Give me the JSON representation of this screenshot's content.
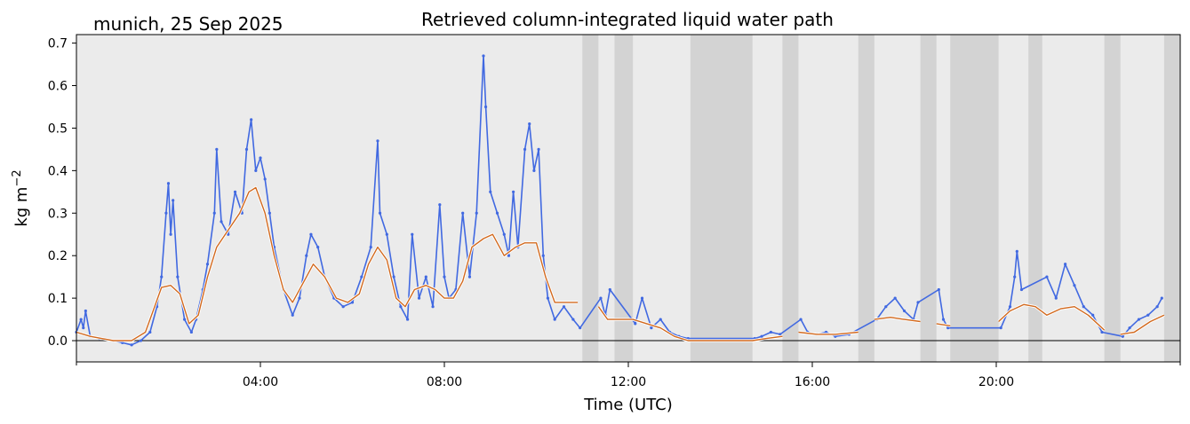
{
  "chart_data": {
    "type": "scatter",
    "title": "Retrieved column-integrated liquid water path",
    "location_label": "munich, 25 Sep 2025",
    "xlabel": "Time (UTC)",
    "ylabel": "kg m",
    "ylabel_exponent": "−2",
    "x_unit": "hour_utc",
    "xlim": [
      0,
      24
    ],
    "ylim": [
      -0.05,
      0.72
    ],
    "x_ticks": [
      {
        "x": 4,
        "label": "04:00"
      },
      {
        "x": 8,
        "label": "08:00"
      },
      {
        "x": 12,
        "label": "12:00"
      },
      {
        "x": 16,
        "label": "16:00"
      },
      {
        "x": 20,
        "label": "20:00"
      }
    ],
    "x_minor_ticks": [
      0,
      24
    ],
    "y_ticks": [
      {
        "y": 0.0,
        "label": "0.0"
      },
      {
        "y": 0.1,
        "label": "0.1"
      },
      {
        "y": 0.2,
        "label": "0.2"
      },
      {
        "y": 0.3,
        "label": "0.3"
      },
      {
        "y": 0.4,
        "label": "0.4"
      },
      {
        "y": 0.5,
        "label": "0.5"
      },
      {
        "y": 0.6,
        "label": "0.6"
      },
      {
        "y": 0.7,
        "label": "0.7"
      }
    ],
    "zero_line": 0.0,
    "background_color": "#ebebeb",
    "flag_band_color": "#d3d3d3",
    "flagged_intervals": [
      [
        11.0,
        11.35
      ],
      [
        11.7,
        12.1
      ],
      [
        13.35,
        14.7
      ],
      [
        15.35,
        15.7
      ],
      [
        17.0,
        17.35
      ],
      [
        18.35,
        18.7
      ],
      [
        19.0,
        20.05
      ],
      [
        20.7,
        21.0
      ],
      [
        22.35,
        22.7
      ],
      [
        23.65,
        24.0
      ]
    ],
    "series": [
      {
        "kind": "raw_scatter",
        "color": "#4169e1",
        "points": [
          [
            0.0,
            0.02
          ],
          [
            0.1,
            0.05
          ],
          [
            0.15,
            0.03
          ],
          [
            0.2,
            0.07
          ],
          [
            0.3,
            0.01
          ],
          [
            0.5,
            0.005
          ],
          [
            0.8,
            0.0
          ],
          [
            1.0,
            -0.005
          ],
          [
            1.2,
            -0.01
          ],
          [
            1.4,
            0.0
          ],
          [
            1.6,
            0.02
          ],
          [
            1.75,
            0.08
          ],
          [
            1.85,
            0.15
          ],
          [
            1.95,
            0.3
          ],
          [
            2.0,
            0.37
          ],
          [
            2.05,
            0.25
          ],
          [
            2.1,
            0.33
          ],
          [
            2.2,
            0.15
          ],
          [
            2.35,
            0.05
          ],
          [
            2.5,
            0.02
          ],
          [
            2.6,
            0.05
          ],
          [
            2.75,
            0.12
          ],
          [
            2.85,
            0.18
          ],
          [
            3.0,
            0.3
          ],
          [
            3.05,
            0.45
          ],
          [
            3.15,
            0.28
          ],
          [
            3.3,
            0.25
          ],
          [
            3.45,
            0.35
          ],
          [
            3.6,
            0.3
          ],
          [
            3.7,
            0.45
          ],
          [
            3.8,
            0.52
          ],
          [
            3.9,
            0.4
          ],
          [
            4.0,
            0.43
          ],
          [
            4.1,
            0.38
          ],
          [
            4.2,
            0.3
          ],
          [
            4.3,
            0.22
          ],
          [
            4.5,
            0.12
          ],
          [
            4.7,
            0.06
          ],
          [
            4.85,
            0.1
          ],
          [
            5.0,
            0.2
          ],
          [
            5.1,
            0.25
          ],
          [
            5.25,
            0.22
          ],
          [
            5.4,
            0.15
          ],
          [
            5.6,
            0.1
          ],
          [
            5.8,
            0.08
          ],
          [
            6.0,
            0.09
          ],
          [
            6.2,
            0.15
          ],
          [
            6.4,
            0.22
          ],
          [
            6.55,
            0.47
          ],
          [
            6.6,
            0.3
          ],
          [
            6.75,
            0.25
          ],
          [
            6.9,
            0.15
          ],
          [
            7.05,
            0.08
          ],
          [
            7.2,
            0.05
          ],
          [
            7.3,
            0.25
          ],
          [
            7.45,
            0.1
          ],
          [
            7.6,
            0.15
          ],
          [
            7.75,
            0.08
          ],
          [
            7.9,
            0.32
          ],
          [
            8.0,
            0.15
          ],
          [
            8.1,
            0.1
          ],
          [
            8.25,
            0.12
          ],
          [
            8.4,
            0.3
          ],
          [
            8.55,
            0.15
          ],
          [
            8.7,
            0.3
          ],
          [
            8.85,
            0.67
          ],
          [
            8.9,
            0.55
          ],
          [
            9.0,
            0.35
          ],
          [
            9.15,
            0.3
          ],
          [
            9.3,
            0.25
          ],
          [
            9.4,
            0.2
          ],
          [
            9.5,
            0.35
          ],
          [
            9.6,
            0.22
          ],
          [
            9.75,
            0.45
          ],
          [
            9.85,
            0.51
          ],
          [
            9.95,
            0.4
          ],
          [
            10.05,
            0.45
          ],
          [
            10.15,
            0.2
          ],
          [
            10.25,
            0.1
          ],
          [
            10.4,
            0.05
          ],
          [
            10.6,
            0.08
          ],
          [
            10.8,
            0.05
          ],
          [
            10.95,
            0.03
          ],
          [
            11.4,
            0.1
          ],
          [
            11.5,
            0.06
          ],
          [
            11.6,
            0.12
          ],
          [
            12.15,
            0.04
          ],
          [
            12.3,
            0.1
          ],
          [
            12.5,
            0.03
          ],
          [
            12.7,
            0.05
          ],
          [
            12.9,
            0.02
          ],
          [
            13.1,
            0.01
          ],
          [
            13.3,
            0.005
          ],
          [
            14.75,
            0.005
          ],
          [
            14.9,
            0.01
          ],
          [
            15.1,
            0.02
          ],
          [
            15.3,
            0.015
          ],
          [
            15.75,
            0.05
          ],
          [
            15.9,
            0.02
          ],
          [
            16.1,
            0.015
          ],
          [
            16.3,
            0.02
          ],
          [
            16.5,
            0.01
          ],
          [
            16.8,
            0.015
          ],
          [
            17.4,
            0.05
          ],
          [
            17.6,
            0.08
          ],
          [
            17.8,
            0.1
          ],
          [
            18.0,
            0.07
          ],
          [
            18.2,
            0.05
          ],
          [
            18.3,
            0.09
          ],
          [
            18.75,
            0.12
          ],
          [
            18.85,
            0.05
          ],
          [
            18.95,
            0.03
          ],
          [
            20.1,
            0.03
          ],
          [
            20.3,
            0.08
          ],
          [
            20.4,
            0.15
          ],
          [
            20.45,
            0.21
          ],
          [
            20.55,
            0.12
          ],
          [
            21.1,
            0.15
          ],
          [
            21.3,
            0.1
          ],
          [
            21.5,
            0.18
          ],
          [
            21.7,
            0.13
          ],
          [
            21.9,
            0.08
          ],
          [
            22.1,
            0.06
          ],
          [
            22.3,
            0.02
          ],
          [
            22.75,
            0.01
          ],
          [
            22.9,
            0.03
          ],
          [
            23.1,
            0.05
          ],
          [
            23.3,
            0.06
          ],
          [
            23.5,
            0.08
          ],
          [
            23.6,
            0.1
          ]
        ]
      },
      {
        "kind": "smoothed",
        "color": "#d2691e",
        "segments": [
          [
            [
              0.0,
              0.02
            ],
            [
              0.3,
              0.01
            ],
            [
              0.8,
              0.0
            ],
            [
              1.2,
              0.0
            ],
            [
              1.5,
              0.02
            ],
            [
              1.7,
              0.08
            ],
            [
              1.85,
              0.125
            ],
            [
              2.05,
              0.13
            ],
            [
              2.25,
              0.11
            ],
            [
              2.45,
              0.04
            ],
            [
              2.65,
              0.06
            ],
            [
              2.85,
              0.15
            ],
            [
              3.05,
              0.22
            ],
            [
              3.3,
              0.26
            ],
            [
              3.55,
              0.3
            ],
            [
              3.75,
              0.35
            ],
            [
              3.9,
              0.36
            ],
            [
              4.1,
              0.3
            ],
            [
              4.3,
              0.2
            ],
            [
              4.5,
              0.12
            ],
            [
              4.7,
              0.09
            ],
            [
              4.95,
              0.14
            ],
            [
              5.15,
              0.18
            ],
            [
              5.4,
              0.15
            ],
            [
              5.65,
              0.1
            ],
            [
              5.9,
              0.09
            ],
            [
              6.15,
              0.11
            ],
            [
              6.35,
              0.18
            ],
            [
              6.55,
              0.22
            ],
            [
              6.75,
              0.19
            ],
            [
              6.95,
              0.1
            ],
            [
              7.15,
              0.08
            ],
            [
              7.35,
              0.12
            ],
            [
              7.6,
              0.13
            ],
            [
              7.8,
              0.12
            ],
            [
              8.0,
              0.1
            ],
            [
              8.2,
              0.1
            ],
            [
              8.4,
              0.14
            ],
            [
              8.6,
              0.22
            ],
            [
              8.85,
              0.24
            ],
            [
              9.05,
              0.25
            ],
            [
              9.3,
              0.2
            ],
            [
              9.55,
              0.22
            ],
            [
              9.75,
              0.23
            ],
            [
              10.0,
              0.23
            ],
            [
              10.2,
              0.15
            ],
            [
              10.4,
              0.09
            ],
            [
              10.65,
              0.09
            ],
            [
              10.9,
              0.09
            ]
          ],
          [
            [
              11.35,
              0.08
            ],
            [
              11.55,
              0.05
            ],
            [
              11.75,
              0.05
            ],
            [
              12.1,
              0.05
            ],
            [
              12.4,
              0.04
            ],
            [
              12.7,
              0.03
            ],
            [
              13.0,
              0.01
            ],
            [
              13.3,
              0.0
            ],
            [
              14.0,
              0.0
            ],
            [
              14.7,
              0.0
            ],
            [
              15.0,
              0.005
            ],
            [
              15.35,
              0.01
            ]
          ],
          [
            [
              15.7,
              0.02
            ],
            [
              16.1,
              0.015
            ],
            [
              16.5,
              0.015
            ],
            [
              17.0,
              0.02
            ]
          ],
          [
            [
              17.35,
              0.05
            ],
            [
              17.7,
              0.055
            ],
            [
              18.0,
              0.05
            ],
            [
              18.35,
              0.045
            ]
          ],
          [
            [
              18.7,
              0.04
            ],
            [
              19.0,
              0.035
            ]
          ],
          [
            [
              20.05,
              0.045
            ],
            [
              20.3,
              0.07
            ],
            [
              20.6,
              0.085
            ],
            [
              20.85,
              0.08
            ],
            [
              21.1,
              0.06
            ],
            [
              21.4,
              0.075
            ],
            [
              21.7,
              0.08
            ],
            [
              22.0,
              0.06
            ],
            [
              22.35,
              0.025
            ]
          ],
          [
            [
              22.7,
              0.015
            ],
            [
              23.0,
              0.02
            ],
            [
              23.35,
              0.045
            ],
            [
              23.65,
              0.06
            ]
          ]
        ]
      }
    ]
  }
}
